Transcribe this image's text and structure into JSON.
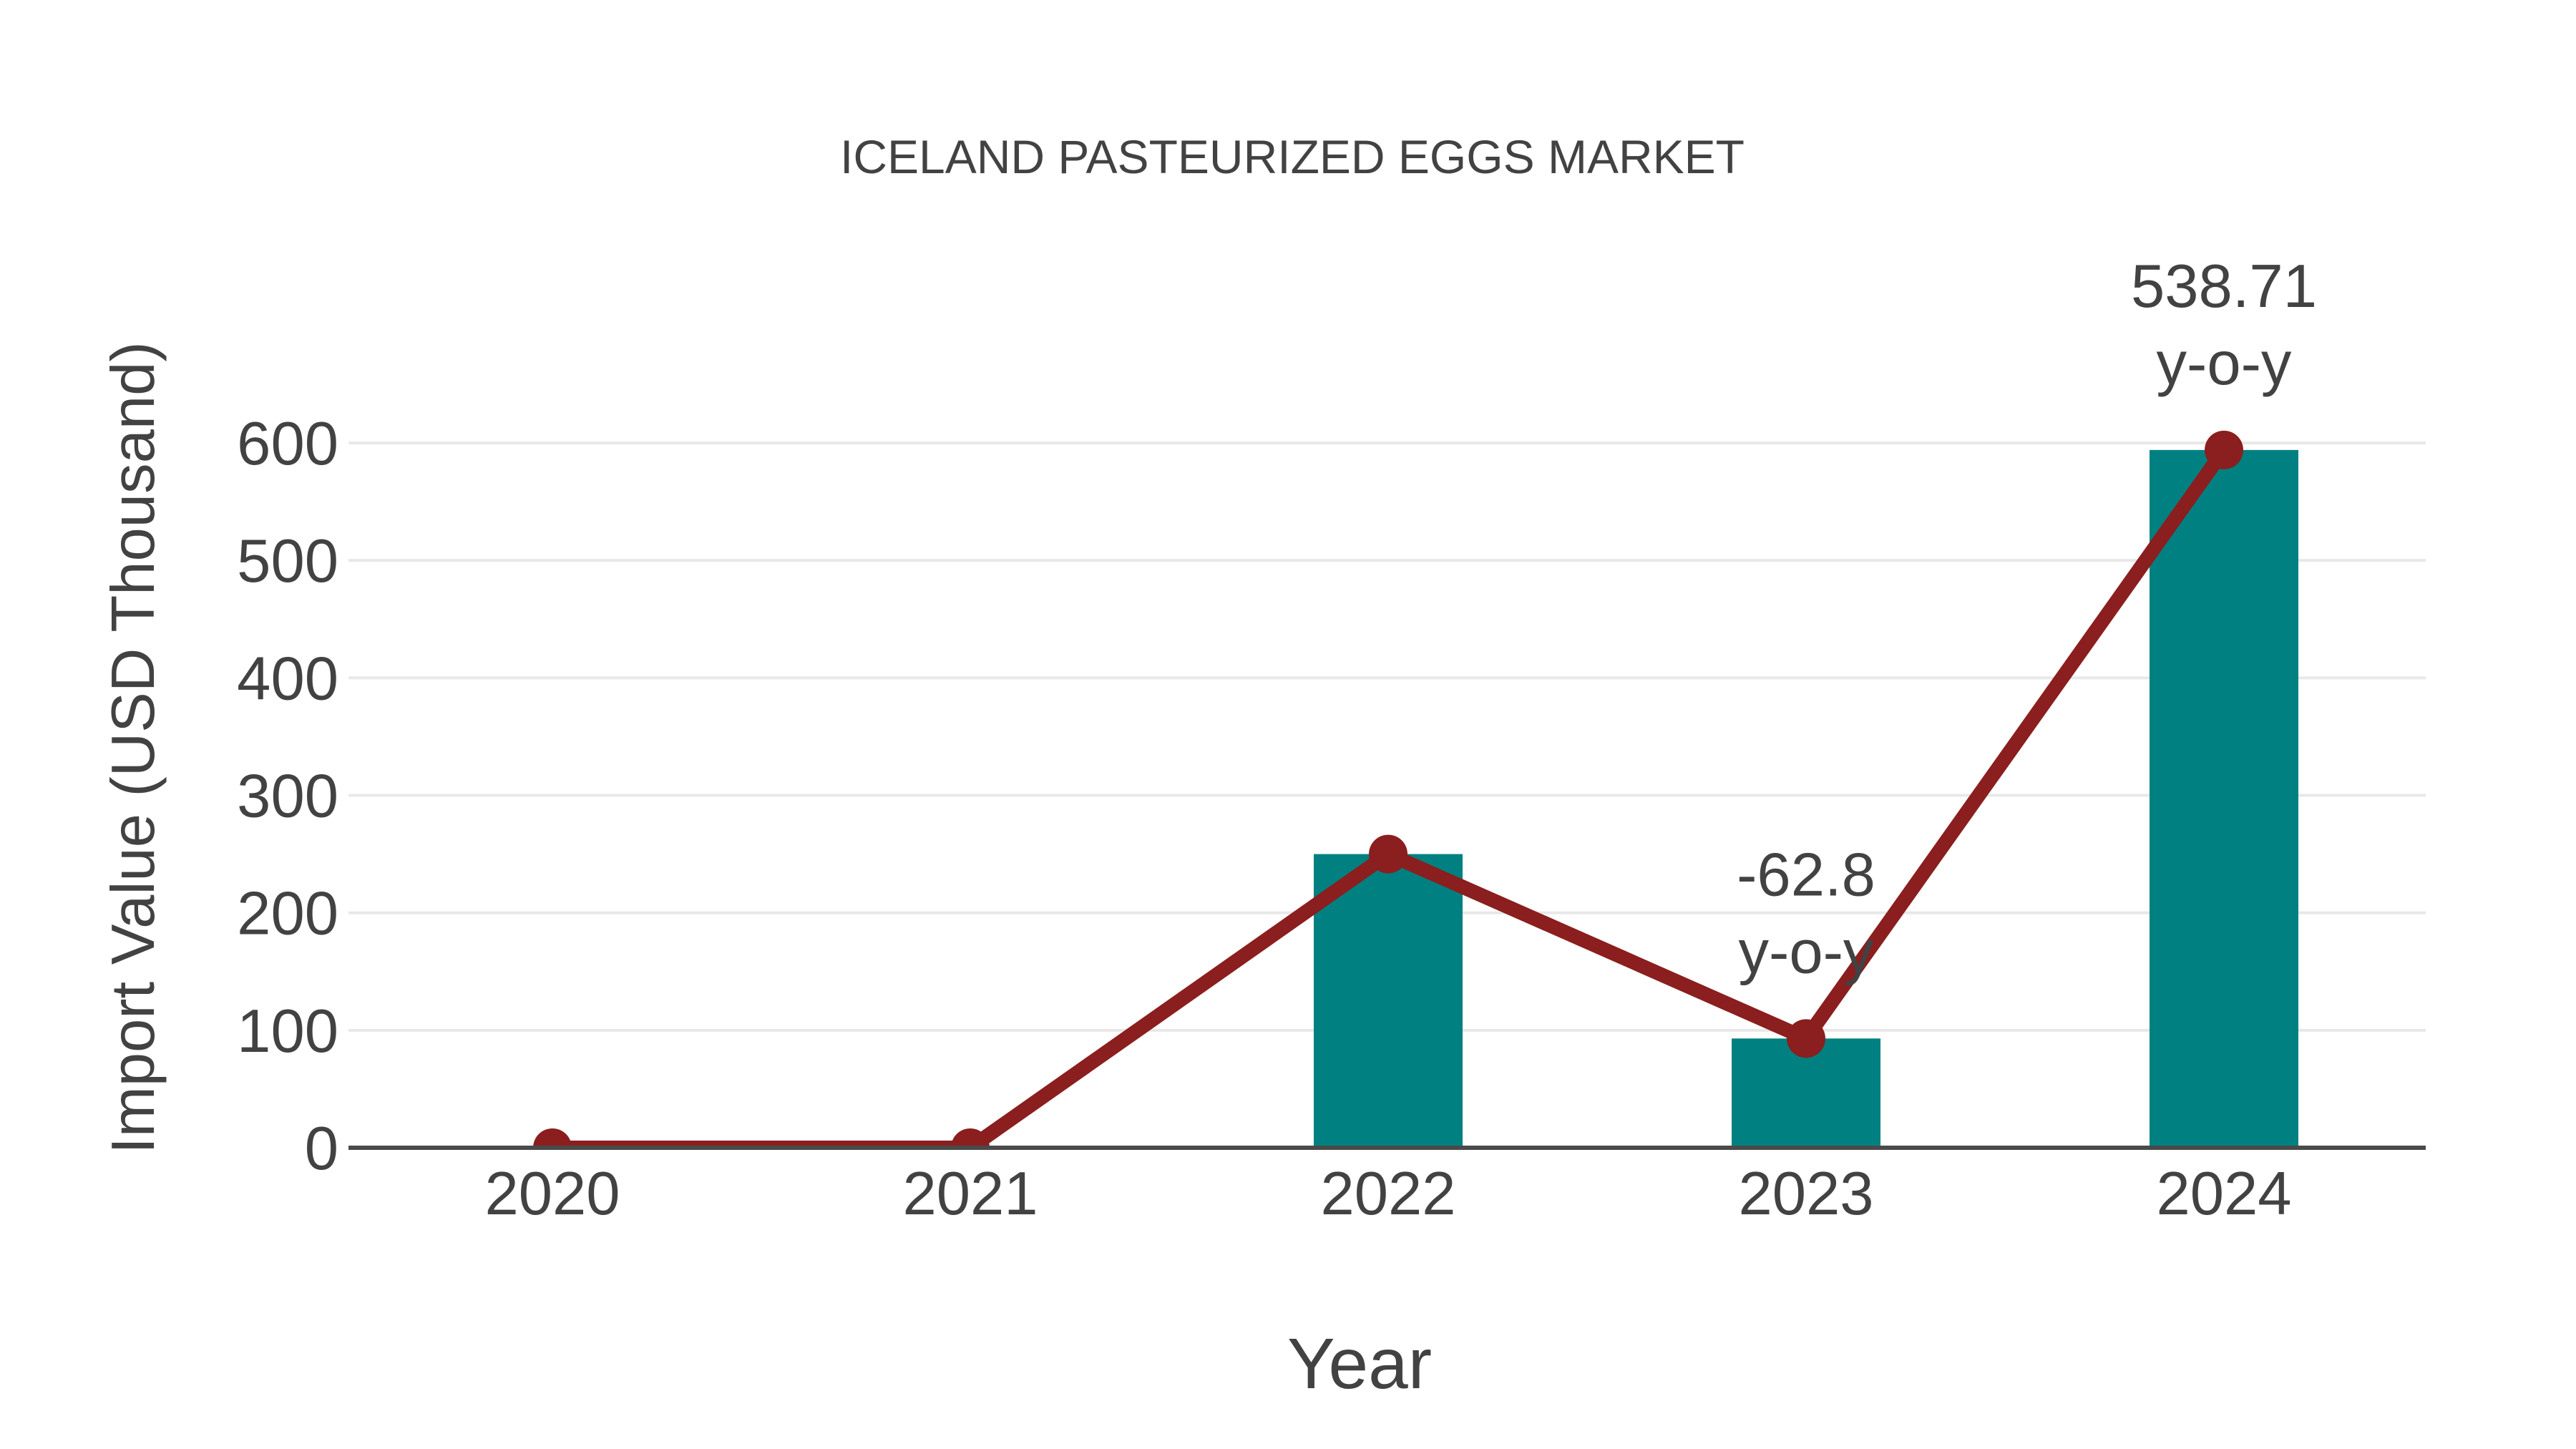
{
  "chart_data": {
    "type": "bar+line",
    "title": "ICELAND PASTEURIZED EGGS MARKET",
    "xlabel": "Year",
    "ylabel": "Import Value (USD Thousand)",
    "categories": [
      "2020",
      "2021",
      "2022",
      "2023",
      "2024"
    ],
    "bar_values": [
      0,
      0,
      250,
      93,
      594
    ],
    "line_values": [
      0,
      0,
      250,
      93,
      594
    ],
    "annotations": [
      {
        "category": "2023",
        "line1": "-62.8",
        "line2": "y-o-y"
      },
      {
        "category": "2024",
        "line1": "538.71",
        "line2": "y-o-y"
      }
    ],
    "ylim": [
      0,
      600
    ],
    "yticks": [
      0,
      100,
      200,
      300,
      400,
      500,
      600
    ],
    "grid": true,
    "legend_position": "none",
    "colors": {
      "bar": "#008080",
      "line": "#8B1E1E",
      "marker": "#8B1E1E",
      "text": "#424242",
      "grid": "#E8E8E8",
      "axis": "#4A4A4A",
      "background": "#FFFFFF"
    }
  }
}
